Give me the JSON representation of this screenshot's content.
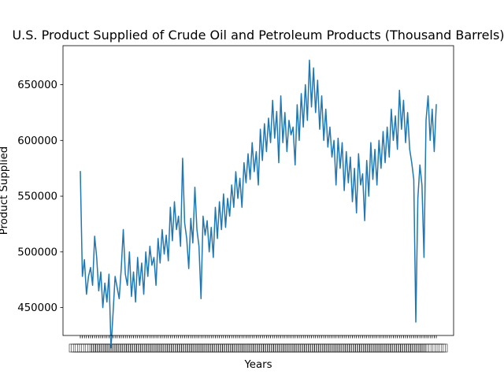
{
  "chart_data": {
    "type": "line",
    "title": "U.S. Product Supplied of Crude Oil and Petroleum Products (Thousand Barrels)",
    "xlabel": "Years",
    "ylabel": "Product Supplied",
    "ylim": [
      425000,
      685000
    ],
    "yticks": [
      450000,
      500000,
      550000,
      600000,
      650000
    ],
    "ytick_labels": [
      "450000",
      "500000",
      "550000",
      "600000",
      "650000"
    ],
    "grid": false,
    "legend": "none",
    "x_tick_labels_overlapping": true,
    "series": [
      {
        "color": "#1f77b4",
        "values": [
          572000,
          478000,
          493000,
          462000,
          478000,
          486000,
          470000,
          514000,
          495000,
          465000,
          482000,
          450000,
          472000,
          455000,
          480000,
          414000,
          445000,
          478000,
          468000,
          458000,
          485000,
          520000,
          480000,
          470000,
          500000,
          460000,
          482000,
          455000,
          495000,
          470000,
          490000,
          462000,
          500000,
          478000,
          505000,
          488000,
          495000,
          470000,
          512000,
          490000,
          520000,
          498000,
          515000,
          492000,
          540000,
          510000,
          545000,
          520000,
          532000,
          505000,
          584000,
          526000,
          512000,
          485000,
          530000,
          508000,
          558000,
          520000,
          505000,
          458000,
          532000,
          515000,
          528000,
          500000,
          522000,
          495000,
          540000,
          512000,
          545000,
          520000,
          552000,
          522000,
          548000,
          532000,
          560000,
          540000,
          572000,
          548000,
          566000,
          540000,
          580000,
          562000,
          588000,
          565000,
          598000,
          572000,
          590000,
          560000,
          610000,
          582000,
          615000,
          590000,
          620000,
          598000,
          636000,
          602000,
          626000,
          580000,
          640000,
          598000,
          625000,
          590000,
          618000,
          605000,
          612000,
          578000,
          632000,
          600000,
          642000,
          612000,
          650000,
          618000,
          672000,
          630000,
          665000,
          625000,
          654000,
          610000,
          640000,
          600000,
          628000,
          594000,
          612000,
          585000,
          600000,
          560000,
          602000,
          575000,
          598000,
          555000,
          590000,
          562000,
          585000,
          545000,
          575000,
          535000,
          588000,
          560000,
          570000,
          528000,
          582000,
          550000,
          598000,
          565000,
          592000,
          560000,
          600000,
          575000,
          608000,
          580000,
          612000,
          585000,
          628000,
          600000,
          622000,
          592000,
          645000,
          610000,
          636000,
          598000,
          625000,
          592000,
          580000,
          565000,
          437000,
          548000,
          578000,
          560000,
          495000,
          618000,
          640000,
          600000,
          628000,
          590000,
          632000
        ]
      }
    ]
  }
}
